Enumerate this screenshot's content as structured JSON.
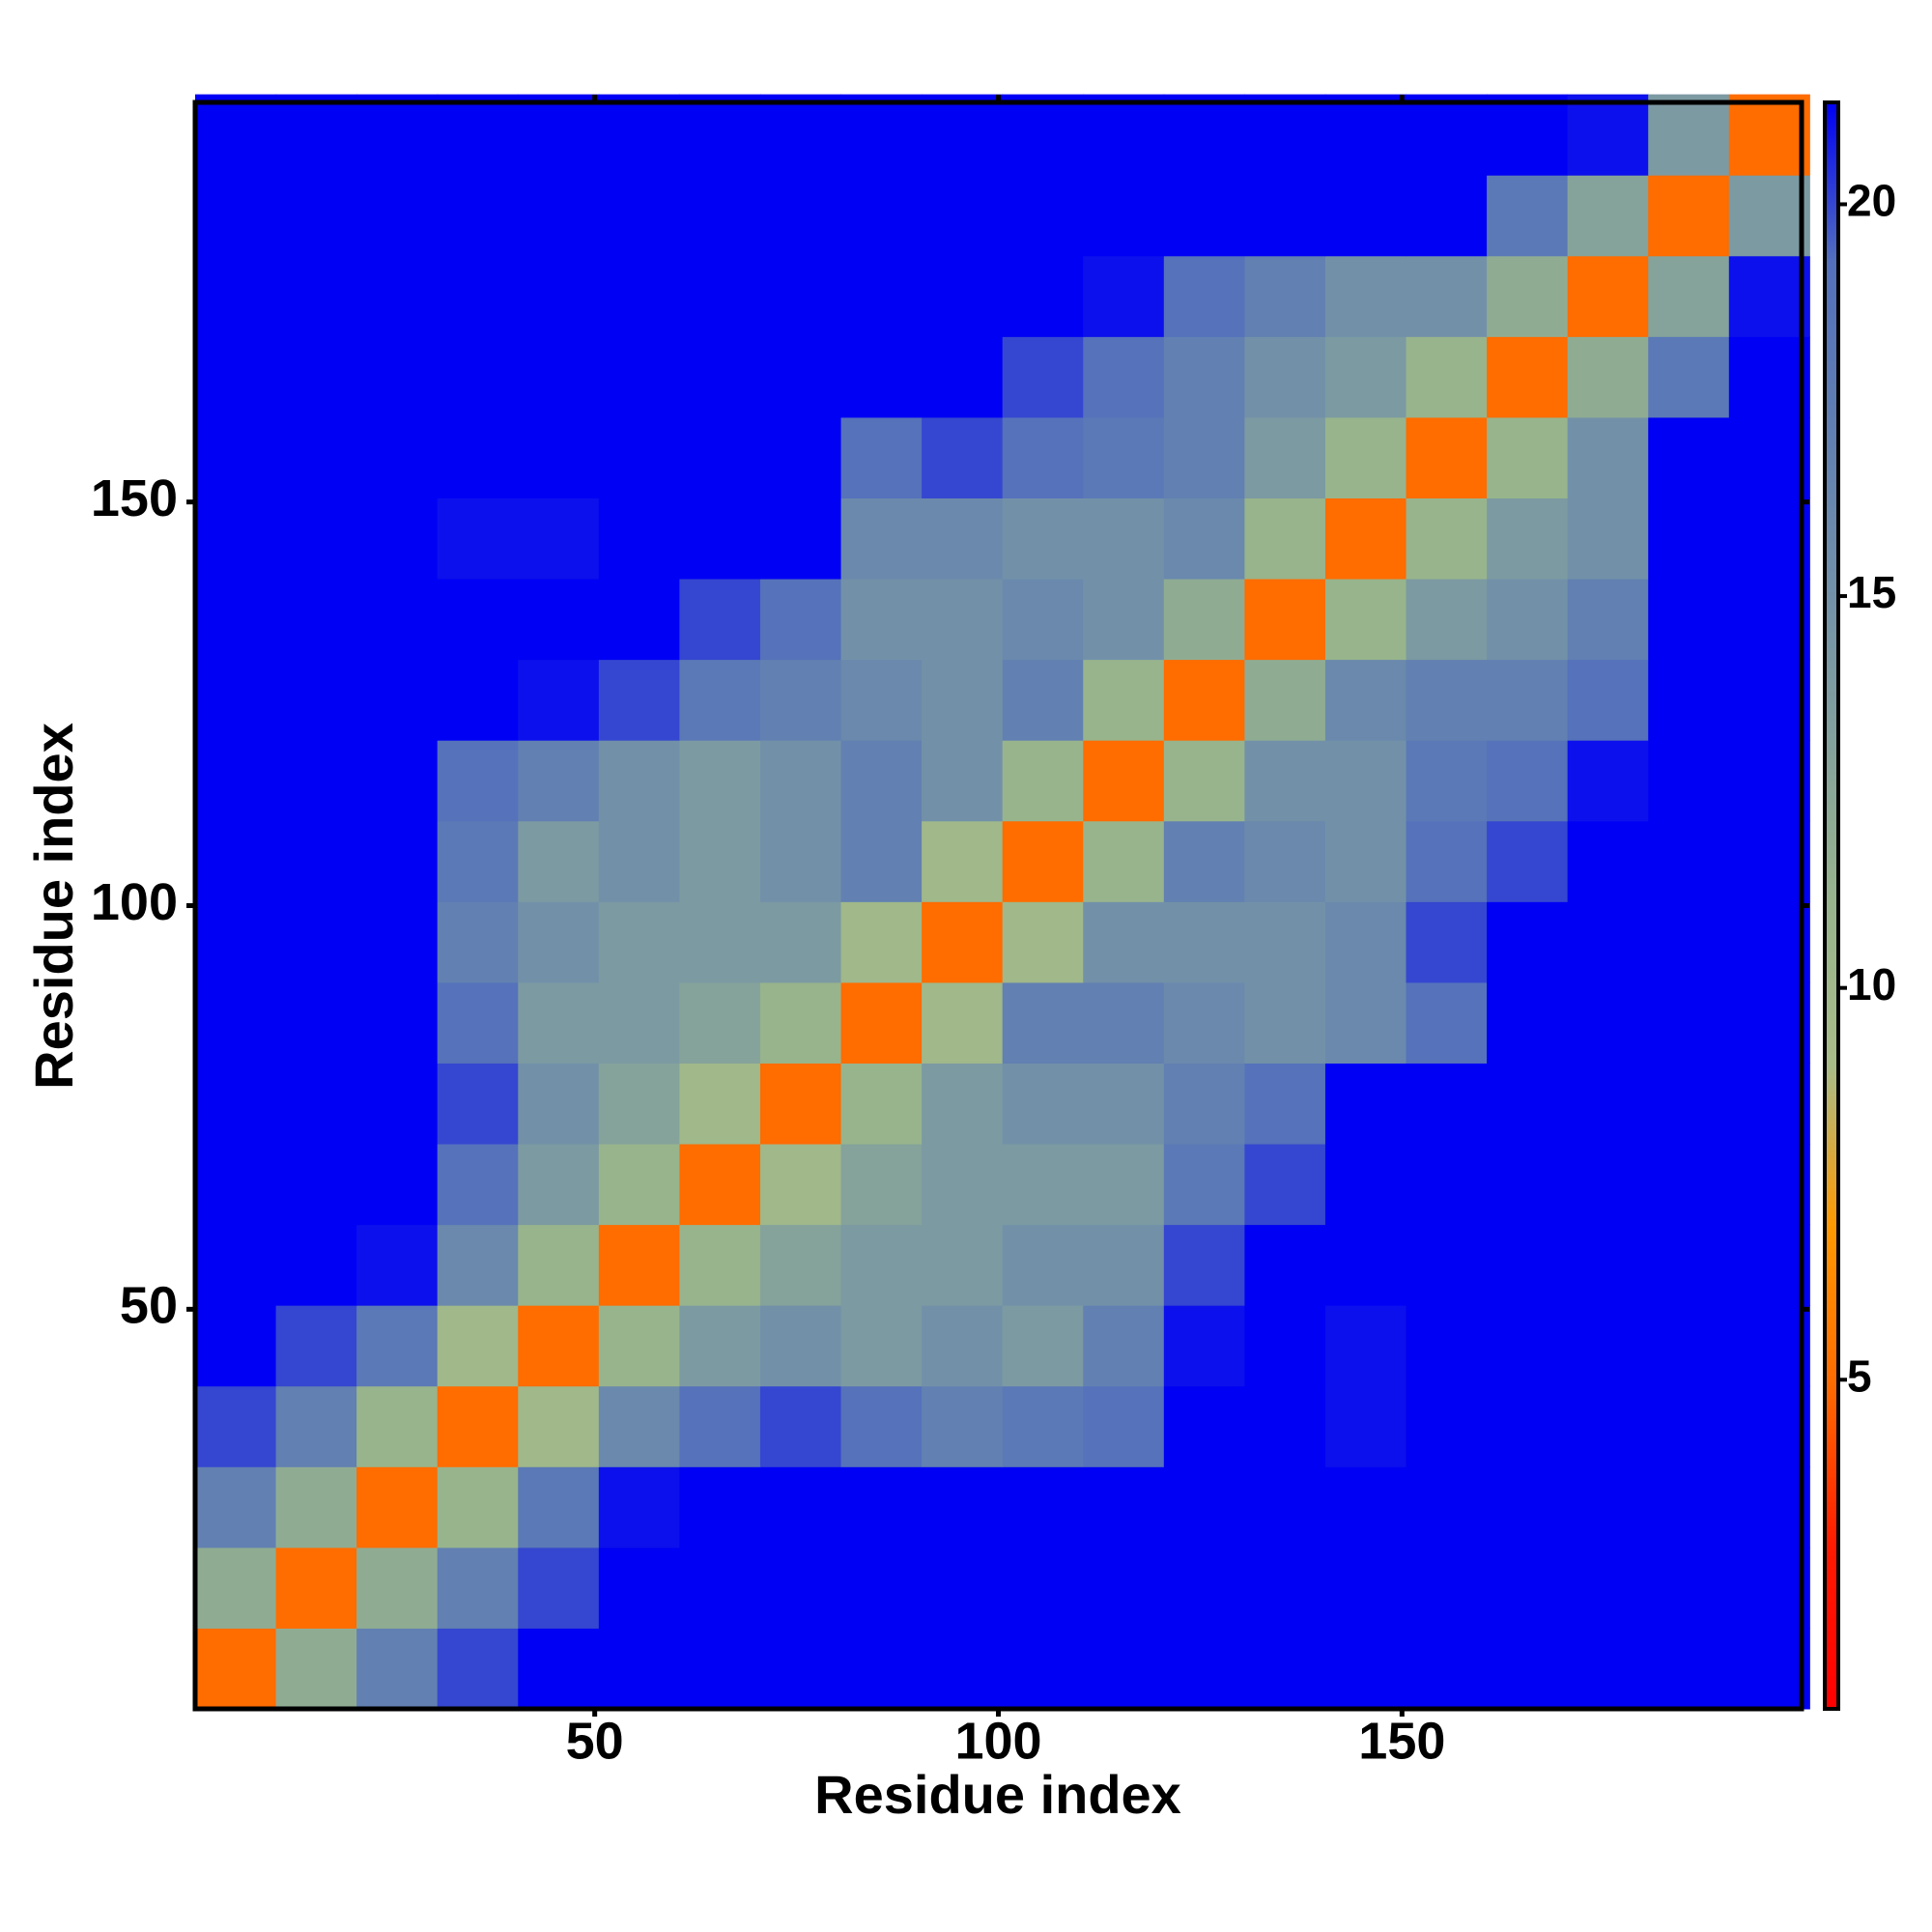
{
  "chart_data": {
    "type": "heatmap",
    "x_label": "Residue index",
    "y_label": "Residue index",
    "x": [
      5.5,
      15.5,
      25.5,
      35.5,
      45.5,
      55.5,
      65.5,
      75.5,
      85.5,
      95.5,
      105.5,
      115.5,
      125.5,
      135.5,
      145.5,
      155.5,
      165.5,
      175.5,
      185.5,
      195.5
    ],
    "y": [
      5.5,
      15.5,
      25.5,
      35.5,
      45.5,
      55.5,
      65.5,
      75.5,
      85.5,
      95.5,
      105.5,
      115.5,
      125.5,
      135.5,
      145.5,
      155.5,
      165.5,
      175.5,
      185.5,
      195.5
    ],
    "xlim": [
      0.5,
      199.5
    ],
    "ylim": [
      0.5,
      199.5
    ],
    "xticks": [
      50,
      100,
      150
    ],
    "yticks": [
      50,
      100,
      150
    ],
    "clim": [
      0.8,
      21.3
    ],
    "cticks": [
      5,
      10,
      15,
      20
    ],
    "colorscale": [
      "#ff0000",
      "#ff1a00",
      "#ff6a00",
      "#ff9900",
      "#a8bc88",
      "#98b48c",
      "#84a29c",
      "#7190aa",
      "#607eb2",
      "#5470bc",
      "#0000f4"
    ],
    "z": [
      [
        5,
        12,
        17,
        20,
        22,
        22,
        22,
        22,
        22,
        22,
        22,
        22,
        22,
        22,
        22,
        22,
        22,
        22,
        22,
        22
      ],
      [
        12,
        5,
        12,
        17,
        20,
        22,
        22,
        22,
        22,
        22,
        22,
        22,
        22,
        22,
        22,
        22,
        22,
        22,
        22,
        22
      ],
      [
        17,
        12,
        5,
        11,
        18,
        21,
        22,
        22,
        22,
        22,
        22,
        22,
        22,
        22,
        22,
        22,
        22,
        22,
        22,
        22
      ],
      [
        20,
        17,
        11,
        5,
        10,
        16,
        19,
        20,
        19,
        17,
        18,
        19,
        22,
        22,
        21,
        22,
        22,
        22,
        22,
        22
      ],
      [
        22,
        20,
        18,
        10,
        5,
        11,
        14,
        15,
        14,
        15,
        14,
        17,
        21,
        22,
        21,
        22,
        22,
        22,
        22,
        22
      ],
      [
        22,
        22,
        21,
        16,
        11,
        5,
        11,
        13,
        14,
        14,
        15,
        15,
        20,
        22,
        22,
        22,
        22,
        22,
        22,
        22
      ],
      [
        22,
        22,
        22,
        19,
        14,
        11,
        5,
        10,
        13,
        14,
        14,
        14,
        18,
        20,
        22,
        22,
        22,
        22,
        22,
        22
      ],
      [
        22,
        22,
        22,
        20,
        15,
        13,
        10,
        5,
        11,
        14,
        15,
        15,
        17,
        19,
        22,
        22,
        22,
        22,
        22,
        22
      ],
      [
        22,
        22,
        22,
        19,
        14,
        14,
        13,
        11,
        5,
        10,
        17,
        17,
        16,
        15,
        16,
        19,
        22,
        22,
        22,
        22
      ],
      [
        22,
        22,
        22,
        17,
        15,
        14,
        14,
        14,
        10,
        5,
        10,
        15,
        15,
        15,
        16,
        20,
        22,
        22,
        22,
        22
      ],
      [
        22,
        22,
        22,
        18,
        14,
        15,
        14,
        15,
        17,
        10,
        5,
        11,
        17,
        16,
        15,
        19,
        20,
        22,
        22,
        22
      ],
      [
        22,
        22,
        22,
        19,
        17,
        15,
        14,
        15,
        17,
        15,
        11,
        5,
        11,
        15,
        15,
        18,
        19,
        21,
        22,
        22
      ],
      [
        22,
        22,
        22,
        22,
        21,
        20,
        18,
        17,
        16,
        15,
        17,
        11,
        5,
        12,
        16,
        17,
        17,
        19,
        22,
        22
      ],
      [
        22,
        22,
        22,
        22,
        22,
        22,
        20,
        19,
        15,
        15,
        16,
        15,
        12,
        5,
        11,
        14,
        15,
        17,
        22,
        22
      ],
      [
        22,
        22,
        22,
        21,
        21,
        22,
        22,
        22,
        16,
        16,
        15,
        15,
        16,
        11,
        5,
        11,
        14,
        15,
        22,
        22
      ],
      [
        22,
        22,
        22,
        22,
        22,
        22,
        22,
        22,
        19,
        20,
        19,
        18,
        17,
        14,
        11,
        5,
        11,
        15,
        22,
        22
      ],
      [
        22,
        22,
        22,
        22,
        22,
        22,
        22,
        22,
        22,
        22,
        20,
        19,
        17,
        15,
        14,
        11,
        5,
        12,
        18,
        22
      ],
      [
        22,
        22,
        22,
        22,
        22,
        22,
        22,
        22,
        22,
        22,
        22,
        21,
        19,
        17,
        15,
        15,
        12,
        5,
        13,
        21
      ],
      [
        22,
        22,
        22,
        22,
        22,
        22,
        22,
        22,
        22,
        22,
        22,
        22,
        22,
        22,
        22,
        22,
        18,
        13,
        5,
        14
      ],
      [
        22,
        22,
        22,
        22,
        22,
        22,
        22,
        22,
        22,
        22,
        22,
        22,
        22,
        22,
        22,
        22,
        22,
        21,
        14,
        5
      ]
    ]
  }
}
